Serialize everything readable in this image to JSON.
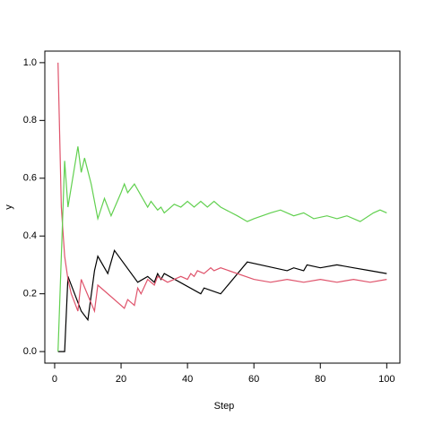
{
  "chart_data": {
    "type": "line",
    "x_label": "Step",
    "y_label": "y",
    "xlim": [
      -2.96,
      103.96
    ],
    "ylim": [
      -0.04,
      1.04
    ],
    "xticks": [
      0,
      20,
      40,
      60,
      80,
      100
    ],
    "yticks": [
      {
        "value": 0,
        "label": "0.0"
      },
      {
        "value": 0.2,
        "label": "0.2"
      },
      {
        "value": 0.4,
        "label": "0.4"
      },
      {
        "value": 0.6,
        "label": "0.6"
      },
      {
        "value": 0.8,
        "label": "0.8"
      },
      {
        "value": 1,
        "label": "1.0"
      }
    ],
    "series": [
      {
        "color": "#000000",
        "x": [
          1,
          3,
          4,
          8,
          10,
          12,
          13,
          16,
          18,
          25,
          28,
          30,
          31,
          32,
          33,
          44,
          45,
          50,
          58,
          70,
          72,
          75,
          76,
          80,
          85,
          90,
          95,
          100
        ],
        "values": [
          0,
          0,
          0.26,
          0.14,
          0.11,
          0.28,
          0.33,
          0.27,
          0.35,
          0.24,
          0.26,
          0.24,
          0.27,
          0.25,
          0.27,
          0.2,
          0.22,
          0.2,
          0.31,
          0.28,
          0.29,
          0.28,
          0.3,
          0.29,
          0.3,
          0.29,
          0.28,
          0.27
        ]
      },
      {
        "color": "#df536b",
        "x": [
          1,
          2,
          3,
          4,
          5,
          6,
          7,
          8,
          12,
          13,
          21,
          22,
          24,
          25,
          26,
          28,
          30,
          31,
          34,
          38,
          40,
          41,
          42,
          43,
          45,
          47,
          48,
          50,
          60,
          65,
          70,
          75,
          80,
          85,
          90,
          95,
          100
        ],
        "values": [
          1,
          0.5,
          0.33,
          0.25,
          0.2,
          0.17,
          0.14,
          0.25,
          0.14,
          0.23,
          0.15,
          0.18,
          0.16,
          0.22,
          0.2,
          0.25,
          0.23,
          0.26,
          0.24,
          0.26,
          0.25,
          0.27,
          0.26,
          0.28,
          0.27,
          0.29,
          0.28,
          0.29,
          0.25,
          0.24,
          0.25,
          0.24,
          0.25,
          0.24,
          0.25,
          0.24,
          0.25
        ]
      },
      {
        "color": "#61d04f",
        "x": [
          1,
          3,
          4,
          7,
          8,
          9,
          11,
          13,
          15,
          17,
          20,
          21,
          22,
          24,
          28,
          29,
          31,
          32,
          33,
          36,
          38,
          40,
          42,
          44,
          46,
          48,
          50,
          55,
          58,
          60,
          65,
          68,
          72,
          75,
          78,
          82,
          85,
          88,
          92,
          96,
          98,
          100
        ],
        "values": [
          0,
          0.66,
          0.5,
          0.71,
          0.62,
          0.67,
          0.58,
          0.46,
          0.53,
          0.47,
          0.55,
          0.58,
          0.55,
          0.58,
          0.5,
          0.52,
          0.49,
          0.5,
          0.48,
          0.51,
          0.5,
          0.52,
          0.5,
          0.52,
          0.5,
          0.52,
          0.5,
          0.47,
          0.45,
          0.46,
          0.48,
          0.49,
          0.47,
          0.48,
          0.46,
          0.47,
          0.46,
          0.47,
          0.45,
          0.48,
          0.49,
          0.48
        ]
      }
    ]
  }
}
